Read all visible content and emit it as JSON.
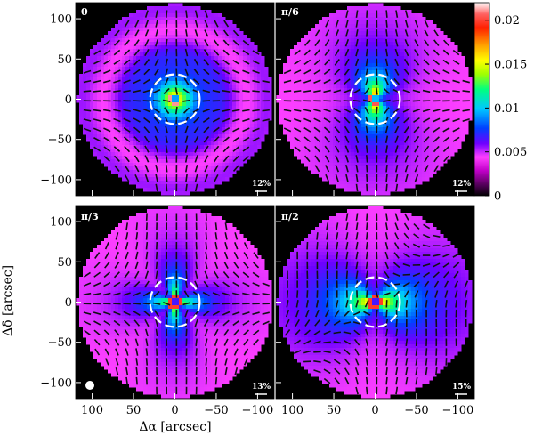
{
  "chart_data": {
    "type": "heatmap",
    "xlabel": "Δα [arcsec]",
    "ylabel": "Δδ [arcsec]",
    "xlim": [
      120,
      -120
    ],
    "ylim": [
      -120,
      120
    ],
    "x_ticks": [
      "100",
      "50",
      "0",
      "−50",
      "−100"
    ],
    "x_tick_values": [
      100,
      50,
      0,
      -50,
      -100
    ],
    "y_ticks": [
      "100",
      "50",
      "0",
      "−50",
      "−100"
    ],
    "y_tick_values": [
      100,
      50,
      0,
      -50,
      -100
    ],
    "colorbar": {
      "ticks": [
        "0.02",
        "0.015",
        "0.01",
        "0.005",
        "0"
      ],
      "tick_values": [
        0.02,
        0.015,
        0.01,
        0.005,
        0
      ],
      "range": [
        0,
        0.022
      ],
      "colormap": "rainbow (black-purple-magenta-blue-cyan-green-yellow-orange-red-white)"
    },
    "dashed_circle_radius": 30,
    "beam": "filled white circle, bottom-left of π/3 panel",
    "panels": [
      {
        "label": "0",
        "scale_label": "12%",
        "structure": "ring-symmetric, peak at center, vectors tangential"
      },
      {
        "label": "π/6",
        "scale_label": "12%",
        "structure": "hourglass along vertical axis"
      },
      {
        "label": "π/3",
        "scale_label": "13%",
        "structure": "cross pattern with four lobes"
      },
      {
        "label": "π/2",
        "scale_label": "15%",
        "structure": "butterfly, lobes along horizontal axis"
      }
    ]
  }
}
